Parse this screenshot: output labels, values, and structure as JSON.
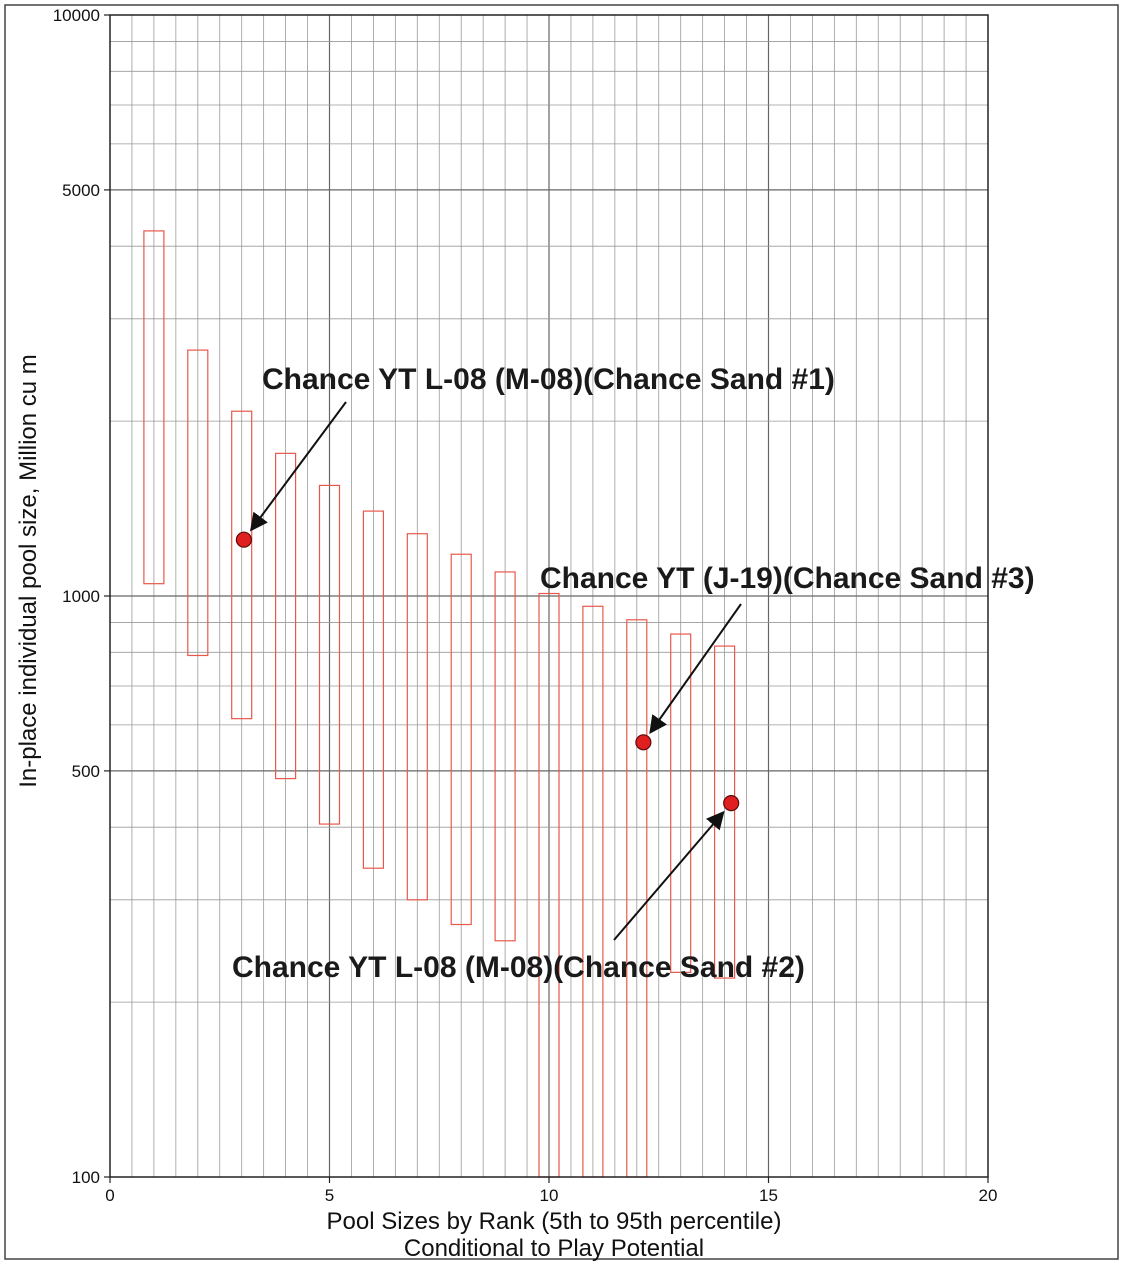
{
  "chart_data": {
    "type": "scatter",
    "xlabel": "Pool Sizes by Rank (5th to 95th percentile)",
    "xlabel2": "Conditional to Play Potential",
    "ylabel": "In-place individual pool size, Million cu m",
    "xlim": [
      0,
      20
    ],
    "ylim": [
      100,
      10000
    ],
    "yscale": "log",
    "grid": true,
    "x_ticks": [
      0,
      5,
      10,
      15,
      20
    ],
    "x_tick_labels": [
      "0",
      "5",
      "10",
      "15",
      "20"
    ],
    "y_ticks": [
      100,
      500,
      1000,
      5000,
      10000
    ],
    "y_tick_labels": [
      "100",
      "500",
      "1000",
      "5000",
      "10000"
    ],
    "ranges": {
      "name": "5th to 95th percentile range",
      "color": "#e8584a",
      "items": [
        {
          "rank": 1,
          "low": 1050,
          "high": 4250
        },
        {
          "rank": 2,
          "low": 790,
          "high": 2650
        },
        {
          "rank": 3,
          "low": 615,
          "high": 2080
        },
        {
          "rank": 4,
          "low": 485,
          "high": 1760
        },
        {
          "rank": 5,
          "low": 405,
          "high": 1550
        },
        {
          "rank": 6,
          "low": 340,
          "high": 1400
        },
        {
          "rank": 7,
          "low": 300,
          "high": 1280
        },
        {
          "rank": 8,
          "low": 272,
          "high": 1180
        },
        {
          "rank": 9,
          "low": 255,
          "high": 1100
        },
        {
          "rank": 10,
          "low": 100,
          "high": 1010
        },
        {
          "rank": 11,
          "low": 100,
          "high": 960
        },
        {
          "rank": 12,
          "low": 100,
          "high": 910
        },
        {
          "rank": 13,
          "low": 225,
          "high": 860
        },
        {
          "rank": 14,
          "low": 220,
          "high": 820
        }
      ]
    },
    "points": [
      {
        "x": 3.05,
        "y": 1250,
        "label": "Chance YT L-08 (M-08)(Chance Sand #1)"
      },
      {
        "x": 12.15,
        "y": 560,
        "label": "Chance YT (J-19)(Chance Sand #3)"
      },
      {
        "x": 14.15,
        "y": 440,
        "label": "Chance YT L-08 (M-08)(Chance Sand #2)"
      }
    ],
    "point_color": "#e02020"
  }
}
